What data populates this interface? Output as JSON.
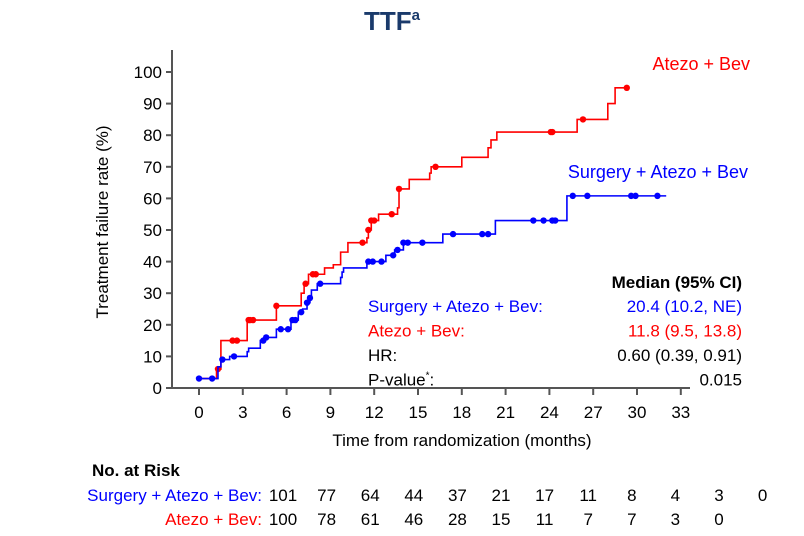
{
  "chart_data": {
    "type": "line",
    "title": "TTF",
    "title_superscript": "a",
    "xlabel": "Time from randomization (months)",
    "ylabel": "Treatment failure rate (%)",
    "xlim": [
      -1.5,
      34
    ],
    "ylim": [
      0,
      100
    ],
    "xticks": [
      0,
      3,
      6,
      9,
      12,
      15,
      18,
      21,
      24,
      27,
      30,
      33
    ],
    "yticks": [
      0,
      10,
      20,
      30,
      40,
      50,
      60,
      70,
      80,
      90,
      100
    ],
    "grid": false,
    "series": [
      {
        "name": "Atezo + Bev",
        "color": "#ff0000",
        "steps": [
          [
            0,
            3
          ],
          [
            1.2,
            6
          ],
          [
            1.5,
            15
          ],
          [
            3.3,
            21.5
          ],
          [
            5.3,
            26
          ],
          [
            7.0,
            30
          ],
          [
            7.2,
            33
          ],
          [
            7.5,
            36
          ],
          [
            8.6,
            38
          ],
          [
            9.2,
            39
          ],
          [
            9.7,
            43
          ],
          [
            10.2,
            46
          ],
          [
            11.5,
            47.5
          ],
          [
            11.6,
            50
          ],
          [
            11.8,
            53
          ],
          [
            12.3,
            55
          ],
          [
            13.6,
            57
          ],
          [
            13.7,
            63
          ],
          [
            14.4,
            66
          ],
          [
            15.8,
            68
          ],
          [
            15.9,
            70
          ],
          [
            18.0,
            73
          ],
          [
            19.8,
            76
          ],
          [
            20.0,
            78.5
          ],
          [
            20.4,
            81
          ],
          [
            25.9,
            85
          ],
          [
            28.0,
            90
          ],
          [
            28.5,
            95
          ]
        ],
        "end": 29.3,
        "censored": [
          1.3,
          2.3,
          2.6,
          3.4,
          3.5,
          3.7,
          5.3,
          7.3,
          7.8,
          8.0,
          11.2,
          11.6,
          11.8,
          12.0,
          13.2,
          13.7,
          16.2,
          24.1,
          24.2,
          26.3,
          29.3
        ]
      },
      {
        "name": "Surgery + Atezo + Bev",
        "color": "#0000ff",
        "steps": [
          [
            0,
            3
          ],
          [
            1.3,
            6.7
          ],
          [
            1.5,
            9
          ],
          [
            2.1,
            10
          ],
          [
            3.3,
            11.5
          ],
          [
            3.4,
            12.6
          ],
          [
            4.2,
            15
          ],
          [
            4.5,
            16
          ],
          [
            5.3,
            18.6
          ],
          [
            6.3,
            21.5
          ],
          [
            6.8,
            24
          ],
          [
            7.1,
            25
          ],
          [
            7.4,
            27
          ],
          [
            7.6,
            28.5
          ],
          [
            7.7,
            31
          ],
          [
            8.1,
            33
          ],
          [
            9.7,
            35
          ],
          [
            9.8,
            36.7
          ],
          [
            9.9,
            38
          ],
          [
            11.5,
            40
          ],
          [
            12.8,
            42
          ],
          [
            13.4,
            43.7
          ],
          [
            14.0,
            46
          ],
          [
            16.7,
            48.7
          ],
          [
            20.3,
            53
          ],
          [
            25.2,
            60.8
          ]
        ],
        "end": 32.0,
        "censored": [
          0,
          0.9,
          1.6,
          2.4,
          4.4,
          4.6,
          5.6,
          6.1,
          6.4,
          6.6,
          7.0,
          7.4,
          7.6,
          8.3,
          11.6,
          11.9,
          12.5,
          13.3,
          13.6,
          14.0,
          14.3,
          15.3,
          17.4,
          19.4,
          19.8,
          22.9,
          23.6,
          24.2,
          24.4,
          25.6,
          26.6,
          29.6,
          29.9,
          31.4
        ]
      }
    ],
    "legend_labels": {
      "atezo": "Atezo + Bev",
      "surgery": "Surgery + Atezo + Bev"
    },
    "stats": {
      "header": "Median (95% CI)",
      "rows": [
        {
          "label": "Surgery + Atezo + Bev:",
          "value": "20.4 (10.2, NE)",
          "color": "#0000ff"
        },
        {
          "label": "Atezo + Bev:",
          "value": "11.8 (9.5, 13.8)",
          "color": "#ff0000"
        },
        {
          "label": "HR:",
          "value": "0.60 (0.39, 0.91)",
          "color": "#000000"
        },
        {
          "label": "P-value",
          "label_superscript": "*",
          "label_suffix": ":",
          "value": "0.015",
          "color": "#000000"
        }
      ]
    },
    "risk_table": {
      "title": "No. at Risk",
      "rows": [
        {
          "label": "Surgery + Atezo + Bev:",
          "color": "#0000ff",
          "values": [
            "101",
            "77",
            "64",
            "44",
            "37",
            "21",
            "17",
            "11",
            "8",
            "4",
            "3",
            "0"
          ]
        },
        {
          "label": "Atezo + Bev:",
          "color": "#ff0000",
          "values": [
            "100",
            "78",
            "61",
            "46",
            "28",
            "15",
            "11",
            "7",
            "7",
            "3",
            "0"
          ]
        }
      ]
    },
    "title_color": "#1a3a6b"
  }
}
